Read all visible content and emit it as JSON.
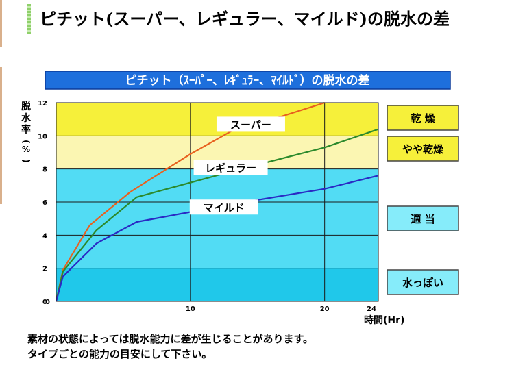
{
  "page": {
    "heading": "ピチット(スーパー、レギュラー、マイルド)の脱水の差"
  },
  "chart_data": {
    "type": "line",
    "title": "ピチット（ｽｰﾊﾟｰ、ﾚｷﾞｭﾗｰ、ﾏｲﾙﾄﾞ）の脱水の差",
    "xlabel": "時間(Hr)",
    "ylabel": "脱水率(%)",
    "xlim": [
      0,
      24
    ],
    "ylim": [
      0,
      12
    ],
    "x_ticks": [
      "0",
      "10",
      "20",
      "24"
    ],
    "y_ticks": [
      "0",
      "2",
      "4",
      "6",
      "8",
      "10",
      "12"
    ],
    "series": [
      {
        "name": "スーパー",
        "color": "#e8601e",
        "x": [
          0,
          0.5,
          2.5,
          5.5,
          10,
          13.3,
          16.5,
          20
        ],
        "y": [
          0,
          1.9,
          4.6,
          6.6,
          8.9,
          10.4,
          11.1,
          12
        ]
      },
      {
        "name": "レギュラー",
        "color": "#2c8a2c",
        "x": [
          0,
          0.5,
          3,
          6,
          13.3,
          20,
          24
        ],
        "y": [
          0,
          1.8,
          4.3,
          6.3,
          7.9,
          9.3,
          10.4
        ]
      },
      {
        "name": "マイルド",
        "color": "#2a2ac4",
        "x": [
          0,
          0.5,
          3,
          6,
          10,
          13.3,
          20,
          24
        ],
        "y": [
          0,
          1.5,
          3.5,
          4.8,
          5.4,
          5.9,
          6.8,
          7.6
        ]
      }
    ],
    "bands": [
      {
        "from": 10,
        "to": 12,
        "color": "#f6f03a",
        "label": "乾 燥"
      },
      {
        "from": 8,
        "to": 10,
        "color": "#fbf6b2",
        "label": "やや乾燥"
      },
      {
        "from": 2,
        "to": 8,
        "color": "#52dcf4",
        "label": "適 当"
      },
      {
        "from": 0,
        "to": 2,
        "color": "#20c8ea",
        "label": "水っぽい"
      }
    ],
    "band_label_colors": {
      "yellow": "#f6f03a",
      "cyan": "#86ecfa"
    },
    "notes": [
      "素材の状態によっては脱水能力に差が生じることがあります。",
      "タイプごとの能力の目安にして下さい。"
    ]
  }
}
